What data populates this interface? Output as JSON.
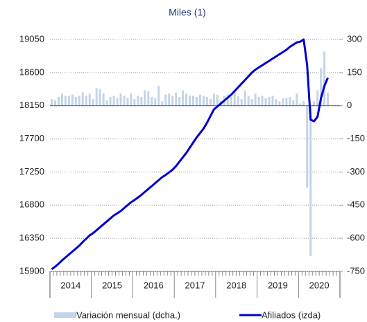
{
  "chart_data": {
    "type": "bar",
    "title": "Miles (1)",
    "categories": [
      "2014",
      null,
      null,
      null,
      null,
      null,
      null,
      null,
      null,
      null,
      null,
      null,
      "2015",
      null,
      null,
      null,
      null,
      null,
      null,
      null,
      null,
      null,
      null,
      null,
      "2016",
      null,
      null,
      null,
      null,
      null,
      null,
      null,
      null,
      null,
      null,
      null,
      "2017",
      null,
      null,
      null,
      null,
      null,
      null,
      null,
      null,
      null,
      null,
      null,
      "2018",
      null,
      null,
      null,
      null,
      null,
      null,
      null,
      null,
      null,
      null,
      null,
      "2019",
      null,
      null,
      null,
      null,
      null,
      null,
      null,
      null,
      null,
      null,
      null,
      "2020",
      null,
      null,
      null,
      null,
      null,
      null,
      null,
      null,
      null,
      null,
      null
    ],
    "series": [
      {
        "name": "Variación mensual (dcha.)",
        "type": "bar",
        "axis": "y2",
        "color": "#c3d4e8",
        "values": [
          30,
          25,
          40,
          55,
          45,
          45,
          50,
          40,
          45,
          60,
          45,
          55,
          30,
          80,
          75,
          55,
          25,
          40,
          45,
          35,
          55,
          45,
          35,
          55,
          30,
          45,
          40,
          70,
          65,
          40,
          35,
          90,
          20,
          50,
          55,
          45,
          60,
          40,
          70,
          55,
          45,
          45,
          40,
          50,
          45,
          40,
          30,
          55,
          50,
          20,
          45,
          50,
          40,
          60,
          45,
          30,
          70,
          45,
          30,
          55,
          40,
          45,
          35,
          40,
          45,
          30,
          20,
          35,
          35,
          40,
          25,
          55,
          10,
          20,
          -370,
          -680,
          20,
          70,
          170,
          245,
          60,
          null,
          null,
          null
        ]
      },
      {
        "name": "Afiliados (izda)",
        "type": "line",
        "axis": "y",
        "color": "#0000cc",
        "values": [
          15930,
          15965,
          16005,
          16050,
          16090,
          16130,
          16170,
          16210,
          16250,
          16300,
          16345,
          16390,
          16420,
          16460,
          16500,
          16540,
          16580,
          16620,
          16660,
          16690,
          16720,
          16760,
          16800,
          16840,
          16870,
          16905,
          16940,
          16980,
          17020,
          17060,
          17100,
          17140,
          17180,
          17210,
          17245,
          17280,
          17330,
          17390,
          17450,
          17510,
          17580,
          17650,
          17720,
          17780,
          17840,
          17920,
          18010,
          18100,
          18140,
          18180,
          18220,
          18260,
          18300,
          18350,
          18400,
          18450,
          18500,
          18550,
          18600,
          18640,
          18670,
          18700,
          18730,
          18760,
          18790,
          18820,
          18850,
          18880,
          18910,
          18950,
          18980,
          19010,
          19020,
          19050,
          18700,
          17960,
          17940,
          18000,
          18250,
          18420,
          18530,
          null,
          null,
          null
        ]
      }
    ],
    "ylim": [
      15900,
      19050
    ],
    "yticks": [
      15900,
      16350,
      16800,
      17250,
      17700,
      18150,
      18600,
      19050
    ],
    "y2lim": [
      -750,
      300
    ],
    "y2ticks": [
      -750,
      -600,
      -450,
      -300,
      -150,
      0,
      150,
      300
    ],
    "grid": true
  }
}
